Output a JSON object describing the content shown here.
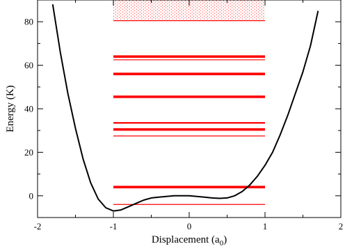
{
  "chart_data": {
    "type": "line",
    "title": "",
    "xlabel": {
      "main": "Displacement  (a",
      "sub": "0",
      "end": ")"
    },
    "ylabel": "Energy (K)",
    "xlim": [
      -2,
      2
    ],
    "ylim": [
      -10,
      90
    ],
    "x_ticks": [
      "-2",
      "-1",
      "0",
      "1",
      "2"
    ],
    "y_ticks": [
      "0",
      "20",
      "40",
      "60",
      "80"
    ],
    "grid": false,
    "potential_curve": {
      "color": "#000000",
      "x": [
        -1.8,
        -1.7,
        -1.6,
        -1.5,
        -1.4,
        -1.3,
        -1.2,
        -1.1,
        -1.0,
        -0.9,
        -0.8,
        -0.7,
        -0.6,
        -0.5,
        -0.4,
        -0.3,
        -0.2,
        -0.1,
        0.0,
        0.1,
        0.2,
        0.3,
        0.4,
        0.5,
        0.6,
        0.7,
        0.8,
        0.9,
        1.0,
        1.1,
        1.2,
        1.3,
        1.4,
        1.5,
        1.6,
        1.7
      ],
      "y": [
        88,
        66,
        47,
        31,
        17,
        6,
        -1.5,
        -5.5,
        -7,
        -6.5,
        -5,
        -3.5,
        -2,
        -1,
        -0.6,
        -0.3,
        0,
        0,
        0,
        -0.3,
        -0.6,
        -1,
        -1.2,
        -1,
        0,
        2,
        5,
        9,
        14,
        20,
        28,
        37,
        47,
        57,
        69,
        85
      ]
    },
    "energy_levels": {
      "color": "#ff0000",
      "x_range": [
        -1,
        1
      ],
      "levels": [
        {
          "y": -4,
          "weight": "thin"
        },
        {
          "y": 4,
          "weight": "thick"
        },
        {
          "y": 27.5,
          "weight": "thin"
        },
        {
          "y": 30.5,
          "weight": "thick"
        },
        {
          "y": 33.5,
          "weight": "medium"
        },
        {
          "y": 45.5,
          "weight": "thick"
        },
        {
          "y": 56,
          "weight": "thick"
        },
        {
          "y": 62.5,
          "weight": "thin"
        },
        {
          "y": 64,
          "weight": "thick"
        },
        {
          "y": 80.5,
          "weight": "thin"
        }
      ],
      "continuum": {
        "y_from": 81,
        "y_to": 90,
        "pattern": "dotted"
      }
    }
  }
}
